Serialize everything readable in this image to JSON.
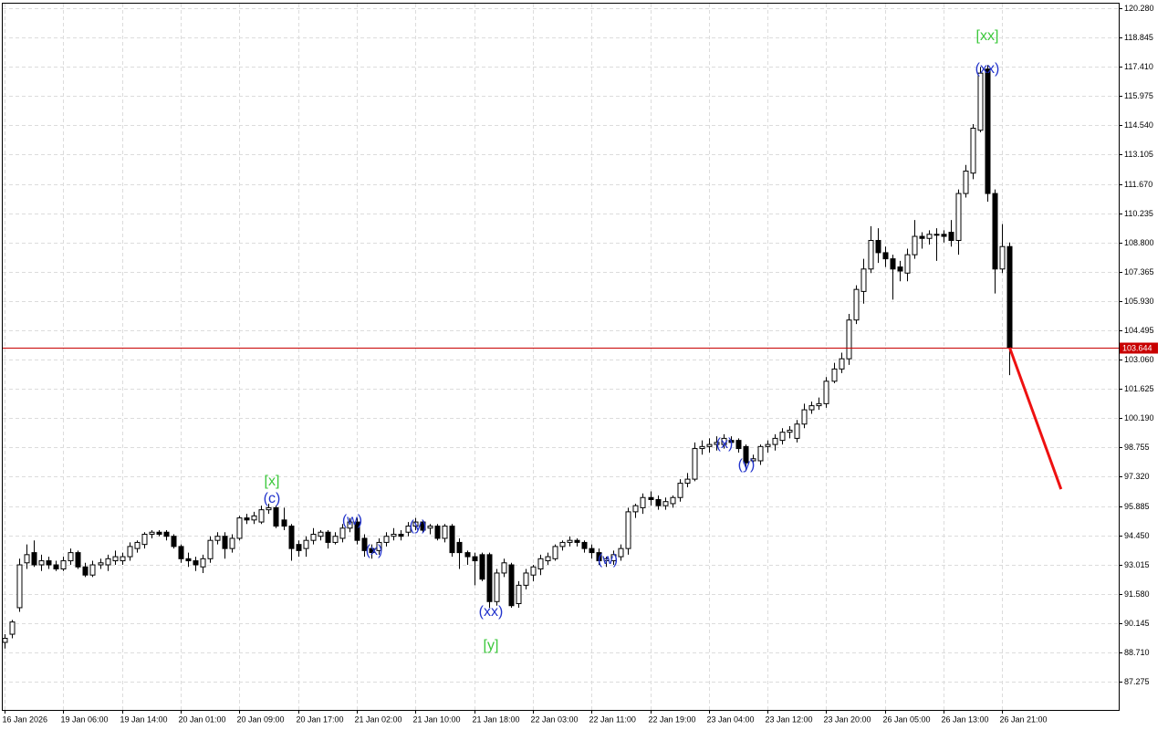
{
  "chart_data": {
    "type": "candlestick",
    "ylim": [
      85.89,
      120.55
    ],
    "yticks": [
      {
        "value": 120.28,
        "label": "120.280"
      },
      118.845,
      {
        "value": 117.41,
        "label": "117.410"
      },
      115.975,
      {
        "value": 114.54,
        "label": "114.540"
      },
      113.105,
      {
        "value": 111.67,
        "label": "111.670"
      },
      110.235,
      {
        "value": 108.8,
        "label": "108.800"
      },
      107.365,
      {
        "value": 105.93,
        "label": "105.930"
      },
      104.495,
      {
        "value": 103.06,
        "label": "103.060"
      },
      101.625,
      {
        "value": 100.19,
        "label": "100.190"
      },
      98.755,
      {
        "value": 97.32,
        "label": "97.320"
      },
      95.885,
      {
        "value": 94.45,
        "label": "94.450"
      },
      93.015,
      {
        "value": 91.58,
        "label": "91.580"
      },
      90.145,
      {
        "value": 88.71,
        "label": "88.710"
      },
      87.275
    ],
    "grid": true,
    "bull_color": "#ffffff",
    "bear_color": "#000000",
    "categories": [
      "16 Jan 2026",
      null,
      null,
      null,
      null,
      null,
      null,
      null,
      "19 Jan 06:00",
      null,
      null,
      null,
      null,
      null,
      null,
      null,
      "19 Jan 14:00",
      null,
      null,
      null,
      null,
      null,
      null,
      null,
      "20 Jan 01:00",
      null,
      null,
      null,
      null,
      null,
      null,
      null,
      "20 Jan 09:00",
      null,
      null,
      null,
      null,
      null,
      null,
      null,
      "20 Jan 17:00",
      null,
      null,
      null,
      null,
      null,
      null,
      null,
      "21 Jan 02:00",
      null,
      null,
      null,
      null,
      null,
      null,
      null,
      "21 Jan 10:00",
      null,
      null,
      null,
      null,
      null,
      null,
      null,
      "21 Jan 18:00",
      null,
      null,
      null,
      null,
      null,
      null,
      null,
      "22 Jan 03:00",
      null,
      null,
      null,
      null,
      null,
      null,
      null,
      "22 Jan 11:00",
      null,
      null,
      null,
      null,
      null,
      null,
      null,
      "22 Jan 19:00",
      null,
      null,
      null,
      null,
      null,
      null,
      null,
      "23 Jan 04:00",
      null,
      null,
      null,
      null,
      null,
      null,
      null,
      "23 Jan 12:00",
      null,
      null,
      null,
      null,
      null,
      null,
      null,
      "23 Jan 20:00",
      null,
      null,
      null,
      null,
      null,
      null,
      null,
      "26 Jan 05:00",
      null,
      null,
      null,
      null,
      null,
      null,
      null,
      "26 Jan 13:00",
      null,
      null,
      null,
      null,
      null,
      null,
      null,
      "26 Jan 21:00",
      null
    ],
    "open": [
      89.2,
      89.6,
      90.9,
      93.1,
      93.6,
      93.0,
      93.2,
      93.0,
      92.8,
      93.2,
      93.6,
      92.9,
      92.5,
      93.0,
      93.0,
      93.2,
      93.2,
      93.4,
      93.8,
      94.0,
      94.5,
      94.6,
      94.6,
      94.4,
      93.9,
      93.3,
      93.2,
      92.9,
      93.3,
      94.2,
      94.4,
      93.8,
      94.3,
      95.3,
      95.2,
      95.1,
      95.7,
      95.8,
      95.2,
      94.9,
      94.0,
      93.8,
      94.2,
      94.4,
      94.6,
      94.1,
      94.3,
      94.8,
      95.1,
      94.3,
      93.8,
      93.7,
      94.1,
      94.4,
      94.5,
      94.6,
      94.9,
      95.1,
      94.8,
      94.9,
      94.3,
      94.9,
      94.1,
      93.6,
      93.4,
      93.5,
      93.5,
      91.2,
      92.6,
      93.0,
      91.1,
      92.0,
      92.5,
      92.8,
      93.2,
      93.3,
      93.9,
      94.1,
      94.2,
      94.1,
      93.8,
      93.6,
      93.2,
      93.2,
      93.4,
      93.8,
      95.6,
      95.8,
      96.3,
      96.2,
      95.9,
      96.0,
      96.3,
      97.0,
      97.2,
      98.7,
      98.8,
      98.9,
      98.9,
      99.1,
      99.1,
      98.8,
      98.1,
      98.1,
      98.8,
      98.9,
      99.1,
      99.5,
      99.2,
      99.9,
      100.6,
      100.8,
      100.9,
      102.0,
      102.6,
      103.1,
      105.0,
      106.4,
      107.5,
      108.9,
      108.3,
      108.0,
      107.6,
      107.3,
      108.2,
      109.1,
      109.0,
      109.2,
      109.2,
      109.3,
      108.9,
      111.2,
      112.2,
      114.3,
      117.3,
      111.2,
      107.5,
      108.6
    ],
    "high": [
      89.6,
      90.3,
      93.3,
      94.0,
      94.2,
      93.5,
      93.4,
      93.2,
      93.4,
      93.8,
      93.7,
      93.1,
      93.2,
      93.3,
      93.5,
      93.7,
      93.6,
      94.1,
      94.2,
      94.6,
      94.7,
      94.7,
      94.7,
      94.5,
      94.0,
      93.6,
      93.4,
      93.5,
      94.4,
      94.6,
      94.6,
      94.5,
      95.4,
      95.5,
      95.6,
      95.9,
      96.0,
      95.9,
      95.8,
      95.0,
      94.2,
      94.4,
      94.8,
      94.7,
      94.7,
      94.6,
      95.0,
      95.3,
      95.3,
      94.5,
      94.0,
      94.3,
      94.6,
      94.8,
      94.7,
      95.1,
      95.3,
      95.2,
      95.0,
      95.0,
      95.0,
      95.0,
      94.3,
      93.7,
      93.6,
      93.6,
      93.6,
      92.8,
      93.3,
      93.1,
      92.2,
      92.8,
      93.0,
      93.5,
      93.6,
      94.0,
      94.2,
      94.4,
      94.3,
      94.2,
      94.0,
      93.8,
      93.4,
      93.7,
      94.0,
      95.8,
      96.0,
      96.5,
      96.6,
      96.4,
      96.3,
      96.4,
      97.2,
      97.5,
      99.0,
      99.1,
      99.2,
      99.3,
      99.4,
      99.3,
      99.2,
      98.9,
      98.4,
      98.9,
      99.1,
      99.4,
      99.7,
      99.8,
      100.1,
      100.9,
      101.0,
      101.2,
      102.2,
      102.9,
      103.4,
      105.3,
      106.7,
      108.0,
      109.6,
      109.5,
      108.6,
      108.2,
      107.9,
      108.5,
      109.9,
      109.3,
      109.4,
      109.5,
      109.4,
      109.9,
      111.4,
      112.6,
      114.6,
      117.4,
      117.5,
      111.4,
      109.7,
      108.8
    ],
    "low": [
      88.9,
      89.4,
      90.7,
      92.8,
      92.9,
      92.7,
      92.8,
      92.7,
      92.7,
      93.0,
      92.8,
      92.4,
      92.4,
      92.8,
      92.7,
      93.0,
      93.0,
      93.2,
      93.6,
      93.8,
      94.3,
      94.4,
      94.2,
      93.8,
      93.1,
      92.9,
      92.7,
      92.6,
      93.1,
      94.0,
      93.3,
      93.6,
      94.2,
      95.0,
      95.0,
      95.0,
      95.5,
      94.8,
      94.7,
      93.2,
      93.4,
      93.4,
      94.0,
      94.2,
      93.8,
      94.0,
      94.1,
      94.6,
      94.0,
      93.4,
      93.3,
      93.5,
      93.9,
      94.2,
      94.2,
      94.4,
      94.7,
      94.6,
      94.5,
      94.2,
      94.1,
      93.4,
      92.8,
      93.0,
      92.0,
      92.2,
      90.9,
      91.0,
      92.4,
      90.9,
      90.9,
      91.8,
      92.2,
      92.5,
      93.0,
      93.2,
      93.7,
      93.9,
      93.9,
      93.6,
      93.3,
      93.0,
      92.9,
      93.0,
      93.2,
      93.5,
      95.3,
      95.5,
      95.9,
      95.7,
      95.7,
      95.8,
      96.1,
      96.8,
      97.1,
      98.4,
      98.5,
      98.6,
      98.7,
      98.8,
      98.5,
      97.6,
      97.8,
      97.9,
      98.5,
      98.6,
      98.9,
      99.2,
      99.0,
      99.7,
      100.4,
      100.6,
      100.7,
      101.9,
      102.4,
      102.8,
      104.8,
      105.8,
      107.3,
      107.8,
      107.6,
      106.0,
      106.9,
      106.9,
      108.0,
      108.5,
      108.7,
      107.9,
      108.8,
      108.6,
      108.2,
      111.0,
      111.9,
      114.2,
      110.8,
      106.3,
      107.3,
      102.3
    ],
    "close": [
      89.4,
      90.2,
      93.0,
      93.5,
      93.0,
      93.2,
      93.0,
      92.8,
      93.2,
      93.6,
      92.9,
      92.5,
      93.0,
      93.1,
      93.3,
      93.4,
      93.4,
      93.9,
      94.1,
      94.5,
      94.6,
      94.5,
      94.4,
      93.9,
      93.3,
      93.2,
      93.0,
      93.3,
      94.2,
      94.4,
      93.8,
      94.3,
      95.3,
      95.2,
      95.4,
      95.7,
      95.8,
      94.9,
      94.9,
      93.8,
      93.7,
      94.2,
      94.5,
      94.6,
      94.1,
      94.4,
      94.8,
      95.1,
      94.2,
      93.7,
      93.6,
      94.1,
      94.4,
      94.5,
      94.4,
      94.9,
      95.1,
      94.7,
      94.9,
      94.3,
      94.9,
      93.6,
      93.6,
      93.4,
      93.2,
      92.3,
      91.2,
      92.6,
      93.1,
      91.0,
      92.0,
      92.6,
      92.9,
      93.3,
      93.4,
      93.9,
      94.1,
      94.2,
      94.1,
      93.8,
      93.6,
      93.2,
      93.3,
      93.5,
      93.8,
      95.6,
      95.9,
      96.3,
      96.2,
      95.9,
      96.1,
      96.3,
      97.0,
      97.2,
      98.7,
      98.8,
      98.9,
      99.0,
      99.2,
      99.0,
      98.7,
      98.0,
      98.2,
      98.8,
      98.9,
      99.2,
      99.5,
      99.6,
      99.9,
      100.6,
      100.8,
      100.9,
      102.0,
      102.6,
      103.1,
      105.0,
      106.5,
      107.5,
      108.9,
      108.3,
      108.0,
      107.5,
      107.4,
      108.2,
      109.1,
      109.0,
      109.2,
      109.2,
      109.1,
      108.9,
      111.2,
      112.3,
      114.4,
      117.1,
      111.2,
      107.5,
      108.6,
      103.644
    ],
    "current_price": 103.644,
    "current_price_color": "#c80000",
    "forecast": {
      "color": "#ee1111",
      "values": [
        103.644,
        96.71
      ]
    },
    "annotations": [
      {
        "text": "[xx]",
        "color": "#3cc83c"
      },
      {
        "text": "(xx)",
        "color": "#2233cc"
      },
      {
        "text": "[x]",
        "color": "#3cc83c"
      },
      {
        "text": "(c)",
        "color": "#2233cc"
      },
      {
        "text": "(w)",
        "color": "#2233cc"
      },
      {
        "text": "(x)",
        "color": "#2233cc"
      },
      {
        "text": "(y)",
        "color": "#2233cc"
      },
      {
        "text": "(xx)",
        "color": "#2233cc"
      },
      {
        "text": "[y]",
        "color": "#3cc83c"
      },
      {
        "text": "(w)",
        "color": "#2233cc"
      },
      {
        "text": "(x)",
        "color": "#2233cc"
      },
      {
        "text": "(y)",
        "color": "#2233cc"
      }
    ]
  }
}
